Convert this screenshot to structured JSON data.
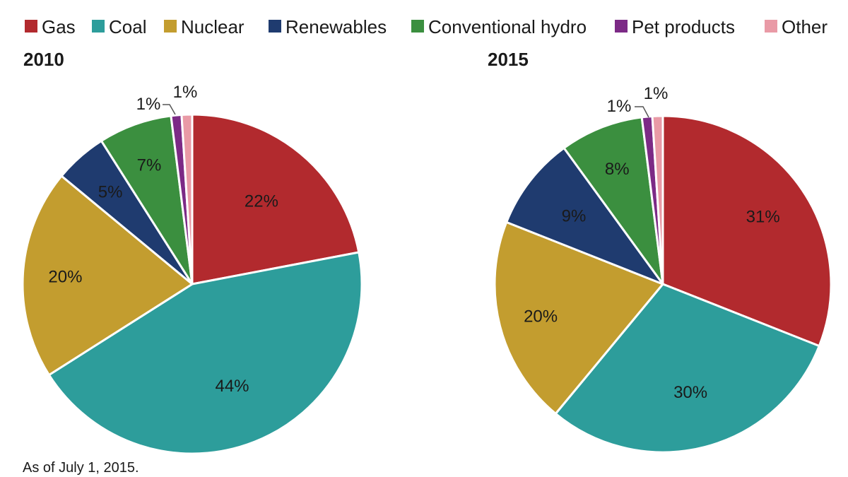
{
  "chart_data": {
    "type": "pie",
    "legend_position": "top",
    "categories": [
      "Gas",
      "Coal",
      "Nuclear",
      "Renewables",
      "Conventional hydro",
      "Pet products",
      "Other"
    ],
    "colors": {
      "Gas": "#b22a2e",
      "Coal": "#2d9d9b",
      "Nuclear": "#c39d2f",
      "Renewables": "#1f3b6f",
      "Conventional hydro": "#3b8f3f",
      "Pet products": "#7c2a86",
      "Other": "#e99aa6"
    },
    "charts": [
      {
        "title": "2010",
        "values": [
          22,
          44,
          20,
          5,
          7,
          1,
          1
        ],
        "labels": [
          "22%",
          "44%",
          "20%",
          "5%",
          "7%",
          "1%",
          "1%"
        ]
      },
      {
        "title": "2015",
        "values": [
          31,
          30,
          20,
          9,
          8,
          1,
          1
        ],
        "labels": [
          "31%",
          "30%",
          "20%",
          "9%",
          "8%",
          "1%",
          "1%"
        ]
      }
    ]
  },
  "footnote": "As of July 1, 2015."
}
